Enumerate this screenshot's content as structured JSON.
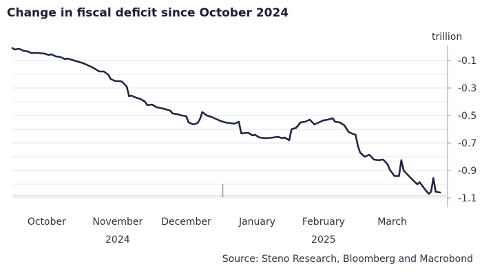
{
  "chart_data": {
    "type": "line",
    "title": "Change in fiscal deficit since October 2024",
    "source": "Source: Steno Research, Bloomberg and Macrobond",
    "ylabel": "trillion",
    "ylim": [
      -1.15,
      0.0
    ],
    "yticks": [
      -0.1,
      -0.2,
      -0.3,
      -0.4,
      -0.5,
      -0.6,
      -0.7,
      -0.8,
      -0.9,
      -1.0,
      -1.1
    ],
    "ytick_labels": [
      "-0.1",
      "-0.3",
      "-0.5",
      "-0.7",
      "-0.9",
      "-1.1"
    ],
    "ytick_label_values": [
      -0.1,
      -0.3,
      -0.5,
      -0.7,
      -0.9,
      -1.1
    ],
    "xlim": [
      "2024-10-01",
      "2025-04-05"
    ],
    "x_axis_labels": [
      {
        "month": "October",
        "year": "",
        "center": "2024-10-16"
      },
      {
        "month": "November",
        "year": "2024",
        "center": "2024-11-16"
      },
      {
        "month": "December",
        "year": "",
        "center": "2024-12-16"
      },
      {
        "month": "January",
        "year": "",
        "center": "2025-01-16"
      },
      {
        "month": "February",
        "year": "2025",
        "center": "2025-02-14"
      },
      {
        "month": "March",
        "year": "",
        "center": "2025-03-16"
      }
    ],
    "x_major_ticks": [
      "2025-01-01"
    ],
    "grid": true,
    "line_color": "#1f2640",
    "series": [
      {
        "points": [
          [
            "2024-10-01",
            -0.01
          ],
          [
            "2024-10-02",
            -0.02
          ],
          [
            "2024-10-04",
            -0.015
          ],
          [
            "2024-10-06",
            -0.03
          ],
          [
            "2024-10-08",
            -0.035
          ],
          [
            "2024-10-09",
            -0.045
          ],
          [
            "2024-10-12",
            -0.045
          ],
          [
            "2024-10-15",
            -0.05
          ],
          [
            "2024-10-17",
            -0.06
          ],
          [
            "2024-10-18",
            -0.055
          ],
          [
            "2024-10-20",
            -0.07
          ],
          [
            "2024-10-22",
            -0.075
          ],
          [
            "2024-10-24",
            -0.09
          ],
          [
            "2024-10-25",
            -0.085
          ],
          [
            "2024-10-28",
            -0.1
          ],
          [
            "2024-10-30",
            -0.11
          ],
          [
            "2024-11-01",
            -0.12
          ],
          [
            "2024-11-03",
            -0.135
          ],
          [
            "2024-11-05",
            -0.15
          ],
          [
            "2024-11-06",
            -0.16
          ],
          [
            "2024-11-08",
            -0.18
          ],
          [
            "2024-11-10",
            -0.18
          ],
          [
            "2024-11-12",
            -0.205
          ],
          [
            "2024-11-13",
            -0.235
          ],
          [
            "2024-11-15",
            -0.25
          ],
          [
            "2024-11-17",
            -0.25
          ],
          [
            "2024-11-18",
            -0.255
          ],
          [
            "2024-11-20",
            -0.29
          ],
          [
            "2024-11-21",
            -0.36
          ],
          [
            "2024-11-22",
            -0.355
          ],
          [
            "2024-11-24",
            -0.37
          ],
          [
            "2024-11-26",
            -0.38
          ],
          [
            "2024-11-28",
            -0.4
          ],
          [
            "2024-11-29",
            -0.425
          ],
          [
            "2024-12-01",
            -0.42
          ],
          [
            "2024-12-03",
            -0.44
          ],
          [
            "2024-12-06",
            -0.45
          ],
          [
            "2024-12-09",
            -0.465
          ],
          [
            "2024-12-10",
            -0.485
          ],
          [
            "2024-12-12",
            -0.49
          ],
          [
            "2024-12-14",
            -0.5
          ],
          [
            "2024-12-16",
            -0.505
          ],
          [
            "2024-12-17",
            -0.55
          ],
          [
            "2024-12-19",
            -0.565
          ],
          [
            "2024-12-21",
            -0.555
          ],
          [
            "2024-12-22",
            -0.525
          ],
          [
            "2024-12-23",
            -0.475
          ],
          [
            "2024-12-25",
            -0.5
          ],
          [
            "2024-12-27",
            -0.51
          ],
          [
            "2024-12-29",
            -0.525
          ],
          [
            "2024-12-31",
            -0.54
          ],
          [
            "2025-01-02",
            -0.55
          ],
          [
            "2025-01-04",
            -0.555
          ],
          [
            "2025-01-06",
            -0.56
          ],
          [
            "2025-01-08",
            -0.545
          ],
          [
            "2025-01-09",
            -0.63
          ],
          [
            "2025-01-12",
            -0.625
          ],
          [
            "2025-01-14",
            -0.645
          ],
          [
            "2025-01-15",
            -0.64
          ],
          [
            "2025-01-17",
            -0.66
          ],
          [
            "2025-01-20",
            -0.665
          ],
          [
            "2025-01-23",
            -0.66
          ],
          [
            "2025-01-25",
            -0.655
          ],
          [
            "2025-01-27",
            -0.665
          ],
          [
            "2025-01-28",
            -0.66
          ],
          [
            "2025-01-30",
            -0.68
          ],
          [
            "2025-01-31",
            -0.6
          ],
          [
            "2025-02-02",
            -0.59
          ],
          [
            "2025-02-04",
            -0.55
          ],
          [
            "2025-02-06",
            -0.545
          ],
          [
            "2025-02-08",
            -0.53
          ],
          [
            "2025-02-10",
            -0.565
          ],
          [
            "2025-02-12",
            -0.55
          ],
          [
            "2025-02-14",
            -0.535
          ],
          [
            "2025-02-16",
            -0.53
          ],
          [
            "2025-02-18",
            -0.52
          ],
          [
            "2025-02-19",
            -0.545
          ],
          [
            "2025-02-21",
            -0.55
          ],
          [
            "2025-02-23",
            -0.57
          ],
          [
            "2025-02-25",
            -0.62
          ],
          [
            "2025-02-27",
            -0.635
          ],
          [
            "2025-02-28",
            -0.64
          ],
          [
            "2025-03-01",
            -0.72
          ],
          [
            "2025-03-02",
            -0.77
          ],
          [
            "2025-03-04",
            -0.8
          ],
          [
            "2025-03-06",
            -0.785
          ],
          [
            "2025-03-08",
            -0.82
          ],
          [
            "2025-03-10",
            -0.825
          ],
          [
            "2025-03-12",
            -0.82
          ],
          [
            "2025-03-14",
            -0.855
          ],
          [
            "2025-03-15",
            -0.895
          ],
          [
            "2025-03-17",
            -0.94
          ],
          [
            "2025-03-19",
            -0.94
          ],
          [
            "2025-03-20",
            -0.825
          ],
          [
            "2025-03-21",
            -0.9
          ],
          [
            "2025-03-23",
            -0.935
          ],
          [
            "2025-03-25",
            -0.97
          ],
          [
            "2025-03-27",
            -1.0
          ],
          [
            "2025-03-28",
            -0.985
          ],
          [
            "2025-03-30",
            -1.03
          ],
          [
            "2025-04-01",
            -1.07
          ],
          [
            "2025-04-02",
            -1.055
          ],
          [
            "2025-04-03",
            -0.955
          ],
          [
            "2025-04-04",
            -1.055
          ],
          [
            "2025-04-06",
            -1.06
          ]
        ]
      }
    ]
  }
}
